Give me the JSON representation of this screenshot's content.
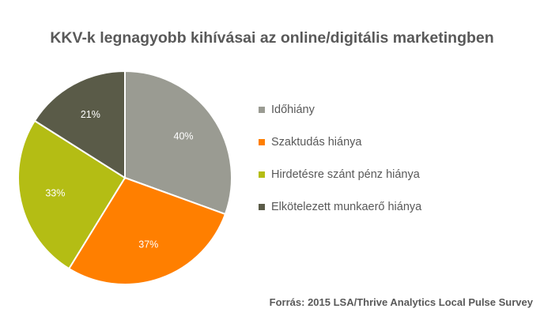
{
  "chart_data": {
    "type": "pie",
    "title": "KKV-k legnagyobb kihívásai az online/digitális marketingben",
    "categories": [
      "Időhiány",
      "Szaktudás hiánya",
      "Hirdetésre szánt pénz hiánya",
      "Elkötelezett munkaerő hiánya"
    ],
    "values": [
      40,
      37,
      33,
      21
    ],
    "value_labels": [
      "40%",
      "37%",
      "33%",
      "21%"
    ],
    "colors": [
      "#9a9b92",
      "#ff7f00",
      "#b4bd14",
      "#5a5b48"
    ],
    "start_angle_deg": 0,
    "direction": "clockwise",
    "legend_position": "right"
  },
  "source": "Forrás: 2015 LSA/Thrive Analytics Local Pulse Survey"
}
